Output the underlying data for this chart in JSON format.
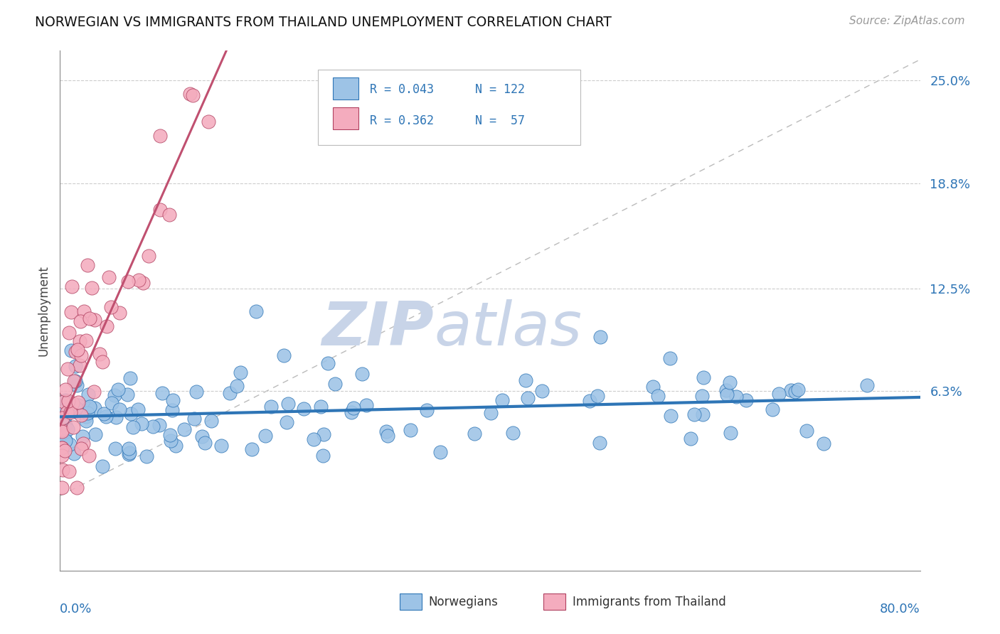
{
  "title": "NORWEGIAN VS IMMIGRANTS FROM THAILAND UNEMPLOYMENT CORRELATION CHART",
  "source": "Source: ZipAtlas.com",
  "ylabel": "Unemployment",
  "color_norwegian": "#9DC3E6",
  "color_thai": "#F4ACBE",
  "color_trendline_norwegian": "#2E75B6",
  "color_trendline_thai": "#C05070",
  "color_diag": "#BBBBBB",
  "watermark_zip": "ZIP",
  "watermark_atlas": "atlas",
  "watermark_color": "#C8D4E8",
  "legend_r1": "R = 0.043",
  "legend_n1": "N = 122",
  "legend_r2": "R = 0.362",
  "legend_n2": "N =  57",
  "ytick_vals": [
    0.0,
    0.063,
    0.125,
    0.188,
    0.25
  ],
  "ytick_labels": [
    "",
    "6.3%",
    "12.5%",
    "18.8%",
    "25.0%"
  ],
  "xmin": 0.0,
  "xmax": 0.8,
  "ymin": -0.045,
  "ymax": 0.268
}
